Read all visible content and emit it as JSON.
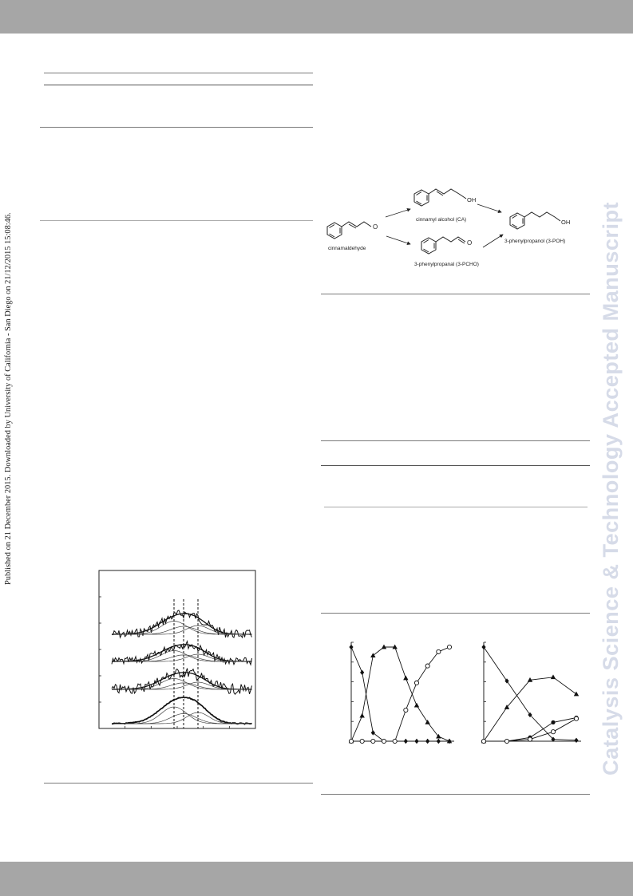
{
  "page": {
    "side_note": "Published on 21 December 2015. Downloaded by University of California - San Diego on 21/12/2015 15:08:46.",
    "watermark": "Catalysis Science & Technology Accepted Manuscript"
  },
  "scheme": {
    "compounds": {
      "cinnamaldehyde": "cinnamaldehyde",
      "cinnamyl_alcohol": "cinnamyl alcohol (CA)",
      "phenylpropanal": "3-phenylpropanal (3-PCHO)",
      "phenylpropanol": "3-phenylpropanol (3-POH)"
    },
    "atoms": {
      "oxygen": "O",
      "hydroxyl": "OH"
    }
  },
  "colors": {
    "band": "#a6a6a6",
    "watermark": "#d6dbe8",
    "ink": "#111111"
  },
  "chart_data": [
    {
      "type": "line",
      "panel": "spectra-stack",
      "description_series": [
        "trace-1",
        "trace-2",
        "trace-3",
        "trace-4"
      ],
      "note": "stacked noisy spectra with fitted component peaks and three dashed reference lines"
    },
    {
      "type": "line",
      "panel": "kinetics-left",
      "series": [
        {
          "marker": "diamond",
          "values": [
            1.0,
            0.73,
            0.09,
            0.0,
            0.0,
            0.0,
            0.0,
            0.0,
            0.0,
            0.0
          ]
        },
        {
          "marker": "triangle",
          "values": [
            0.0,
            0.27,
            0.91,
            1.0,
            1.0,
            0.67,
            0.38,
            0.2,
            0.05,
            0.0
          ]
        },
        {
          "marker": "open-circle",
          "values": [
            0.0,
            0.0,
            0.0,
            0.0,
            0.0,
            0.33,
            0.62,
            0.8,
            0.95,
            1.0
          ]
        }
      ]
    },
    {
      "type": "line",
      "panel": "kinetics-right",
      "series": [
        {
          "marker": "diamond",
          "values": [
            1.0,
            0.64,
            0.28,
            0.02,
            0.01
          ]
        },
        {
          "marker": "triangle",
          "values": [
            0.0,
            0.36,
            0.65,
            0.68,
            0.5
          ]
        },
        {
          "marker": "filled-circle",
          "values": [
            0.0,
            0.0,
            0.04,
            0.2,
            0.25
          ]
        },
        {
          "marker": "open-circle",
          "values": [
            0.0,
            0.0,
            0.02,
            0.1,
            0.24
          ]
        }
      ]
    }
  ]
}
